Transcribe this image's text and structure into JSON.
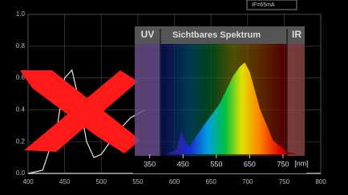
{
  "chart_data": [
    {
      "type": "line",
      "legend_text": "IF=65mA",
      "x": [
        400,
        420,
        440,
        450,
        460,
        470,
        480,
        490,
        500,
        520,
        540,
        560
      ],
      "series": [
        {
          "color": "#e8e8e8",
          "values": [
            0,
            0.02,
            0.3,
            0.6,
            0.65,
            0.45,
            0.2,
            0.1,
            0.12,
            0.25,
            0.35,
            0.4
          ]
        }
      ],
      "xlim": [
        400,
        800
      ],
      "xticks": [
        400,
        450,
        500,
        550,
        600,
        650,
        700,
        750,
        800
      ],
      "ylim": [
        0,
        1
      ],
      "yticks": [
        {
          "value": 0,
          "label": "0.0"
        },
        {
          "value": 0.2,
          "label": "0.2"
        },
        {
          "value": 0.4,
          "label": "0.4"
        },
        {
          "value": 0.6,
          "label": "0.6"
        },
        {
          "value": 0.8,
          "label": "0.8"
        },
        {
          "value": 1,
          "label": "1.0"
        }
      ],
      "grid": true
    },
    {
      "type": "spectrum",
      "annotations": [
        "UV",
        "Sichtbares Spektrum",
        "IR"
      ],
      "xlabel": "[nm]",
      "x": [
        400,
        430,
        445,
        455,
        470,
        490,
        520,
        560,
        600,
        620,
        635,
        650,
        680,
        720,
        760,
        790
      ],
      "values": [
        0,
        0.05,
        0.25,
        0.15,
        0.08,
        0.2,
        0.35,
        0.55,
        0.85,
        0.95,
        1.0,
        0.9,
        0.5,
        0.15,
        0.03,
        0
      ],
      "xlim": [
        305,
        815
      ],
      "xticks": [
        350,
        450,
        550,
        650,
        750
      ],
      "ylim": [
        0,
        1.2
      ]
    }
  ]
}
